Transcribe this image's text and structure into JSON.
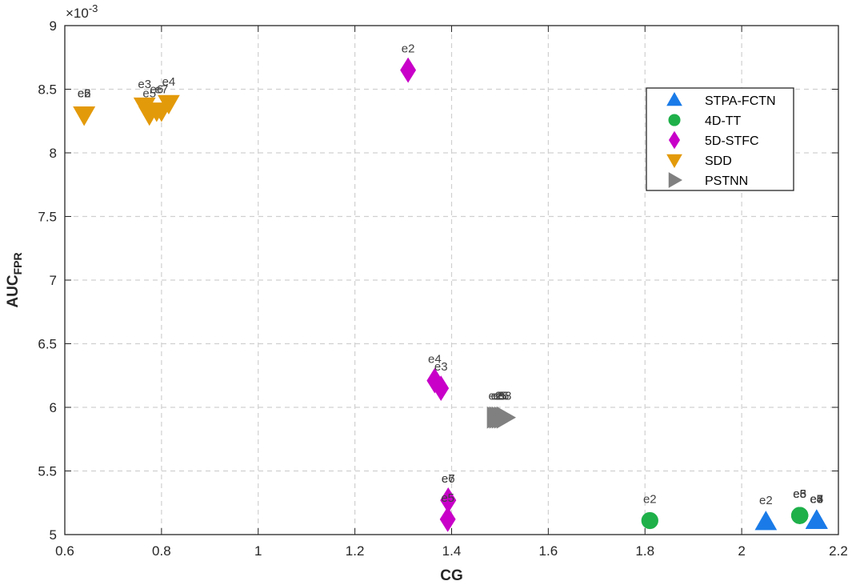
{
  "chart_data": {
    "type": "scatter",
    "xlabel": "CG",
    "ylabel_main": "AUC",
    "ylabel_sub": "FPR",
    "y_exponent_label": "×10",
    "y_exponent_power": "-3",
    "xlim": [
      0.6,
      2.2
    ],
    "ylim": [
      5,
      9
    ],
    "x_ticks": [
      "0.6",
      "0.8",
      "1",
      "1.2",
      "1.4",
      "1.6",
      "1.8",
      "2",
      "2.2"
    ],
    "y_ticks": [
      "5",
      "5.5",
      "6",
      "6.5",
      "7",
      "7.5",
      "8",
      "8.5",
      "9"
    ],
    "grid": true,
    "legend_position": "top-right",
    "series": [
      {
        "name": "STPA-FCTN",
        "marker": "triangle-up",
        "color": "#1a7be8",
        "points": [
          {
            "x": 2.05,
            "y": 5.1,
            "label": "e2"
          },
          {
            "x": 2.155,
            "y": 5.11,
            "label": "e3"
          },
          {
            "x": 2.155,
            "y": 5.11,
            "label": "e4"
          },
          {
            "x": 2.155,
            "y": 5.11,
            "label": "e5"
          },
          {
            "x": 2.155,
            "y": 5.11,
            "label": "e6"
          },
          {
            "x": 2.155,
            "y": 5.11,
            "label": "e7"
          }
        ]
      },
      {
        "name": "4D-TT",
        "marker": "circle",
        "color": "#1fb04a",
        "points": [
          {
            "x": 1.81,
            "y": 5.11,
            "label": "e2"
          },
          {
            "x": 2.12,
            "y": 5.15,
            "label": "e3"
          },
          {
            "x": 2.12,
            "y": 5.15,
            "label": "e5"
          },
          {
            "x": 2.12,
            "y": 5.15,
            "label": "e6"
          },
          {
            "x": 2.12,
            "y": 5.15,
            "label": "e8"
          }
        ]
      },
      {
        "name": "5D-STFC",
        "marker": "diamond",
        "color": "#c800c8",
        "points": [
          {
            "x": 1.31,
            "y": 8.65,
            "label": "e2"
          },
          {
            "x": 1.365,
            "y": 6.21,
            "label": "e4"
          },
          {
            "x": 1.378,
            "y": 6.15,
            "label": "e3"
          },
          {
            "x": 1.393,
            "y": 5.27,
            "label": "e6"
          },
          {
            "x": 1.393,
            "y": 5.27,
            "label": "e7"
          },
          {
            "x": 1.392,
            "y": 5.12,
            "label": "e5"
          }
        ]
      },
      {
        "name": "SDD",
        "marker": "triangle-down",
        "color": "#e39a0a",
        "points": [
          {
            "x": 0.64,
            "y": 8.3,
            "label": "e2"
          },
          {
            "x": 0.64,
            "y": 8.3,
            "label": "e5"
          },
          {
            "x": 0.64,
            "y": 8.3,
            "label": "e6"
          },
          {
            "x": 0.765,
            "y": 8.37,
            "label": "e3"
          },
          {
            "x": 0.775,
            "y": 8.3,
            "label": "e5"
          },
          {
            "x": 0.79,
            "y": 8.33,
            "label": "e6"
          },
          {
            "x": 0.8,
            "y": 8.33,
            "label": "e7"
          },
          {
            "x": 0.815,
            "y": 8.39,
            "label": "e4"
          }
        ]
      },
      {
        "name": "PSTNN",
        "marker": "triangle-right",
        "color": "#808080",
        "points": [
          {
            "x": 1.49,
            "y": 5.92,
            "label": "e2"
          },
          {
            "x": 1.495,
            "y": 5.92,
            "label": "e3"
          },
          {
            "x": 1.5,
            "y": 5.92,
            "label": "e5"
          },
          {
            "x": 1.505,
            "y": 5.92,
            "label": "e6"
          },
          {
            "x": 1.51,
            "y": 5.92,
            "label": "e8"
          }
        ]
      }
    ]
  }
}
